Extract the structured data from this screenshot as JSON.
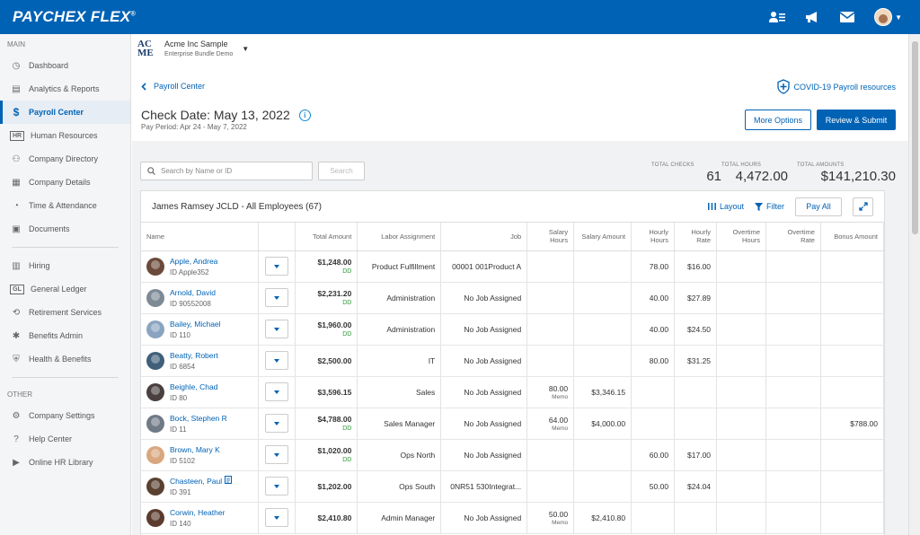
{
  "app": {
    "brand": "PAYCHEX FLEX",
    "brand_mark": "®"
  },
  "topbar": {
    "icons": [
      "people-icon",
      "megaphone-icon",
      "mail-icon",
      "user-avatar"
    ]
  },
  "sidebar": {
    "main_label": "MAIN",
    "main_items": [
      {
        "label": "Dashboard",
        "icon": "dashboard-icon"
      },
      {
        "label": "Analytics & Reports",
        "icon": "analytics-icon"
      },
      {
        "label": "Payroll Center",
        "icon": "dollar-icon",
        "active": true
      },
      {
        "label": "Human Resources",
        "icon": "hr-icon"
      },
      {
        "label": "Company Directory",
        "icon": "directory-icon"
      },
      {
        "label": "Company Details",
        "icon": "details-icon"
      },
      {
        "label": "Time & Attendance",
        "icon": "clock-icon"
      },
      {
        "label": "Documents",
        "icon": "document-icon"
      }
    ],
    "main_items2": [
      {
        "label": "Hiring",
        "icon": "hiring-icon"
      },
      {
        "label": "General Ledger",
        "icon": "gl-icon"
      },
      {
        "label": "Retirement Services",
        "icon": "retirement-icon"
      },
      {
        "label": "Benefits Admin",
        "icon": "benefits-icon"
      },
      {
        "label": "Health & Benefits",
        "icon": "shield-icon"
      }
    ],
    "other_label": "OTHER",
    "other_items": [
      {
        "label": "Company Settings",
        "icon": "gear-icon"
      },
      {
        "label": "Help Center",
        "icon": "help-icon"
      },
      {
        "label": "Online HR Library",
        "icon": "video-icon"
      }
    ]
  },
  "company": {
    "logo": "AC ME",
    "logo_line1": "AC",
    "logo_line2": "ME",
    "name": "Acme Inc Sample",
    "plan": "Enterprise Bundle Demo"
  },
  "breadcrumb": {
    "back_label": "Payroll Center"
  },
  "covid_link": "COVID-19 Payroll resources",
  "header": {
    "check_date": "Check Date: May 13, 2022",
    "pay_period": "Pay Period:  Apr 24 - May 7, 2022",
    "more_options": "More Options",
    "review_submit": "Review & Submit"
  },
  "search": {
    "placeholder": "Search by Name or ID",
    "button": "Search"
  },
  "totals": [
    {
      "label": "TOTAL CHECKS",
      "value": "61"
    },
    {
      "label": "TOTAL HOURS",
      "value": "4,472.00"
    },
    {
      "label": "TOTAL AMOUNTS",
      "value": "$141,210.30"
    }
  ],
  "grid": {
    "title": "James Ramsey JCLD - All Employees (67)",
    "layout": "Layout",
    "filter": "Filter",
    "pay_all": "Pay All",
    "columns": [
      "Name",
      "",
      "Total Amount",
      "Labor Assignment",
      "Job",
      "Salary Hours",
      "Salary Amount",
      "Hourly Hours",
      "Hourly Rate",
      "Overtime Hours",
      "Overtime Rate",
      "Bonus Amount"
    ],
    "rows": [
      {
        "name": "Apple, Andrea",
        "id": "ID Apple352",
        "total": "$1,248.00",
        "dd": "DD",
        "labor": "Product Fulfillment",
        "job": "00001 001Product A",
        "sal_hours": "",
        "sal_memo": "",
        "sal_amount": "",
        "hr_hours": "78.00",
        "hr_rate": "$16.00",
        "bonus": "",
        "color": "#6b4a3a"
      },
      {
        "name": "Arnold, David",
        "id": "ID 90552008",
        "total": "$2,231.20",
        "dd": "DD",
        "labor": "Administration",
        "job": "No Job Assigned",
        "sal_hours": "",
        "sal_memo": "",
        "sal_amount": "",
        "hr_hours": "40.00",
        "hr_rate": "$27.89",
        "bonus": "",
        "color": "#7d8a96"
      },
      {
        "name": "Bailey, Michael",
        "id": "ID 110",
        "total": "$1,960.00",
        "dd": "DD",
        "labor": "Administration",
        "job": "No Job Assigned",
        "sal_hours": "",
        "sal_memo": "",
        "sal_amount": "",
        "hr_hours": "40.00",
        "hr_rate": "$24.50",
        "bonus": "",
        "color": "#8aa4c0"
      },
      {
        "name": "Beatty, Robert",
        "id": "ID 6854",
        "total": "$2,500.00",
        "dd": "",
        "labor": "IT",
        "job": "No Job Assigned",
        "sal_hours": "",
        "sal_memo": "",
        "sal_amount": "",
        "hr_hours": "80.00",
        "hr_rate": "$31.25",
        "bonus": "",
        "color": "#3f5f7a"
      },
      {
        "name": "Beighle, Chad",
        "id": "ID 80",
        "total": "$3,596.15",
        "dd": "",
        "labor": "Sales",
        "job": "No Job Assigned",
        "sal_hours": "80.00",
        "sal_memo": "Memo",
        "sal_amount": "$3,346.15",
        "hr_hours": "",
        "hr_rate": "",
        "bonus": "",
        "color": "#4a4040"
      },
      {
        "name": "Bock, Stephen R",
        "id": "ID 11",
        "total": "$4,788.00",
        "dd": "DD",
        "labor": "Sales Manager",
        "job": "No Job Assigned",
        "sal_hours": "64.00",
        "sal_memo": "Memo",
        "sal_amount": "$4,000.00",
        "hr_hours": "",
        "hr_rate": "",
        "bonus": "$788.00",
        "color": "#6f7a86"
      },
      {
        "name": "Brown, Mary K",
        "id": "ID 5102",
        "total": "$1,020.00",
        "dd": "DD",
        "labor": "Ops North",
        "job": "No Job Assigned",
        "sal_hours": "",
        "sal_memo": "",
        "sal_amount": "",
        "hr_hours": "60.00",
        "hr_rate": "$17.00",
        "bonus": "",
        "color": "#d9a77f"
      },
      {
        "name": "Chasteen, Paul",
        "id": "ID 391",
        "total": "$1,202.00",
        "dd": "",
        "labor": "Ops South",
        "job": "0NR51 530Integrat...",
        "sal_hours": "",
        "sal_memo": "",
        "sal_amount": "",
        "hr_hours": "50.00",
        "hr_rate": "$24.04",
        "bonus": "",
        "color": "#5a4030",
        "note": true
      },
      {
        "name": "Corwin, Heather",
        "id": "ID 140",
        "total": "$2,410.80",
        "dd": "",
        "labor": "Admin Manager",
        "job": "No Job Assigned",
        "sal_hours": "50.00",
        "sal_memo": "Memo",
        "sal_amount": "$2,410.80",
        "hr_hours": "",
        "hr_rate": "",
        "bonus": "",
        "color": "#5b3b2e"
      }
    ]
  },
  "colors": {
    "brand": "#0062b5",
    "dd_green": "#2e9a3a"
  }
}
